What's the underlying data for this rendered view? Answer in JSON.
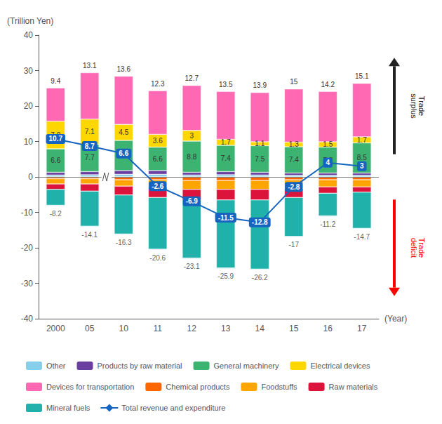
{
  "chart_data": {
    "type": "bar",
    "stacked": true,
    "x_label": "(Year)",
    "y_label": "(Trillion Yen)",
    "categories": [
      "2000",
      "05",
      "10",
      "11",
      "12",
      "13",
      "14",
      "15",
      "16",
      "17"
    ],
    "ylim": [
      -40,
      40
    ],
    "yticks": [
      -40,
      -30,
      -20,
      -10,
      0,
      10,
      20,
      30,
      40
    ],
    "grid": false,
    "legend": "bottom",
    "series": [
      {
        "name": "Other",
        "color": "#87CEEB",
        "values": [
          0.52,
          0.6,
          0.72,
          0.72,
          0.52,
          0.6,
          0.52,
          0.44,
          0.44,
          0.44
        ]
      },
      {
        "name": "Products by raw material",
        "color": "#6B3FA0",
        "values": [
          0.78,
          0.9,
          1.08,
          1.08,
          0.78,
          0.9,
          0.78,
          0.66,
          0.66,
          0.66
        ]
      },
      {
        "name": "General machinery",
        "color": "#3CB371",
        "data_labels": true,
        "values": [
          6.6,
          7.7,
          8.5,
          6.6,
          8.8,
          7.4,
          7.5,
          7.4,
          7.3,
          8.5
        ]
      },
      {
        "name": "Electrical devices",
        "color": "#FFD700",
        "data_labels": true,
        "values": [
          7.8,
          7.1,
          4.5,
          3.6,
          3.0,
          1.7,
          1.1,
          1.3,
          1.5,
          1.7
        ]
      },
      {
        "name": "Devices for transportation",
        "color": "#FF69B4",
        "data_labels": true,
        "values": [
          9.4,
          13.1,
          13.6,
          12.3,
          12.7,
          13.5,
          13.9,
          15.0,
          14.2,
          15.1
        ]
      },
      {
        "name": "Chemical products",
        "color": "#FF6600",
        "values": [
          -0.5,
          -0.5,
          -0.8,
          -0.8,
          -1.0,
          -1.0,
          -1.0,
          -0.8,
          -0.8,
          -0.8
        ]
      },
      {
        "name": "Foodstuffs",
        "color": "#FFA500",
        "values": [
          -1.5,
          -1.5,
          -1.8,
          -2.0,
          -2.5,
          -2.5,
          -2.5,
          -2.5,
          -2.0,
          -2.0
        ]
      },
      {
        "name": "Raw materials",
        "color": "#DC143C",
        "values": [
          -1.5,
          -2.0,
          -2.5,
          -3.0,
          -3.0,
          -3.0,
          -3.0,
          -2.5,
          -1.8,
          -1.5
        ]
      },
      {
        "name": "Mineral fuels",
        "color": "#20B2AA",
        "values": [
          -4.5,
          -9.9,
          -11.0,
          -14.6,
          -16.4,
          -19.2,
          -19.5,
          -11.0,
          -6.4,
          -10.2
        ]
      },
      {
        "name": "Other",
        "color": "#87CEEB",
        "values": [
          -0.2,
          -0.2,
          -0.2,
          -0.2,
          -0.2,
          -0.2,
          -0.2,
          -0.2,
          -0.2,
          -0.2
        ]
      },
      {
        "name": "Total revenue and expenditure",
        "type": "line",
        "marker": "diamond",
        "color": "#1565C0",
        "data_labels": true,
        "values": [
          10.7,
          8.7,
          6.6,
          -2.6,
          -6.9,
          -11.5,
          -12.8,
          -2.8,
          4.0,
          3.0
        ]
      }
    ],
    "negative_totals": [
      -8.2,
      -14.1,
      -16.3,
      -20.6,
      -23.1,
      -25.9,
      -26.2,
      -17.0,
      -11.2,
      -14.7
    ],
    "annotations": [
      {
        "text": "Trade\nsurplus",
        "color": "#222222"
      },
      {
        "text": "Trade\ndeficit",
        "color": "red"
      }
    ]
  }
}
